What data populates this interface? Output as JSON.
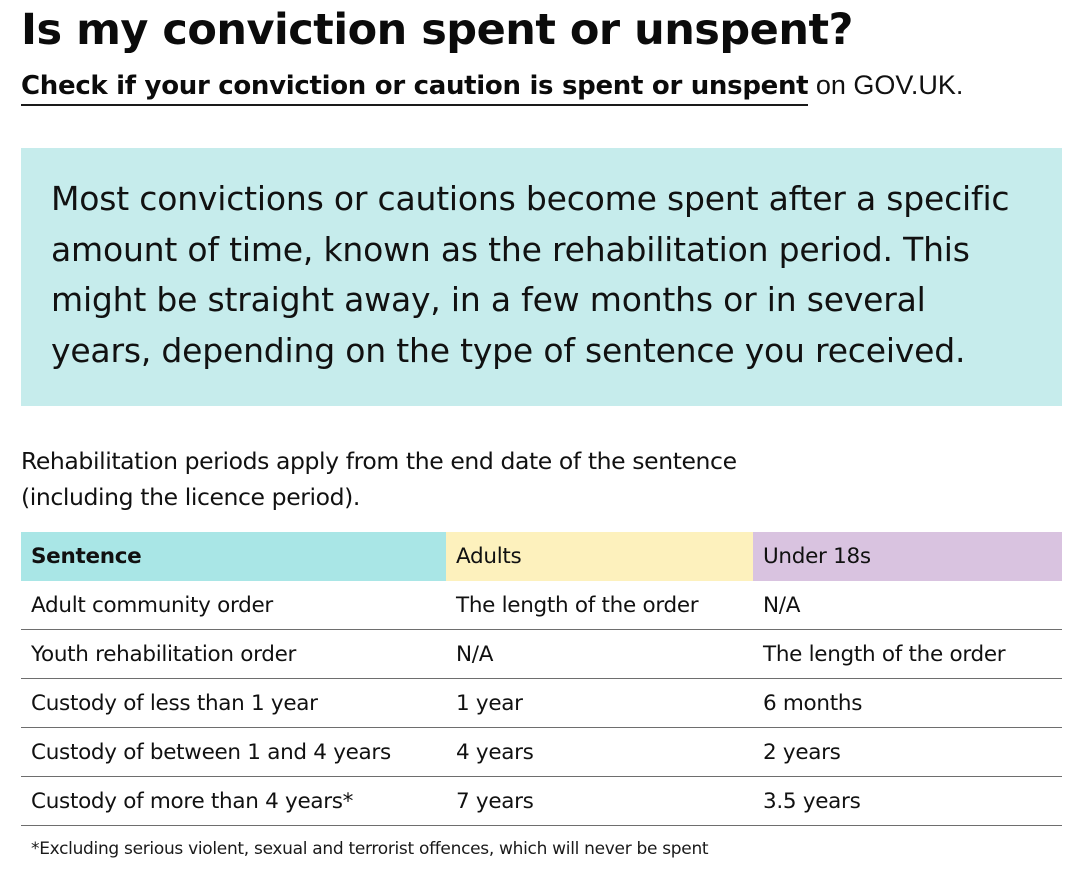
{
  "header": {
    "title": "Is my conviction spent or unspent?",
    "link_text": "Check if your conviction or caution is spent or unspent",
    "link_suffix": " on GOV.UK."
  },
  "callout": {
    "text": "Most convictions or cautions become spent after a specific amount of time, known as the rehabilitation period. This might be straight away, in a few months or in several years, depending on the type of sentence you received."
  },
  "intro": {
    "line1": "Rehabilitation periods apply from the end date of the sentence",
    "line2": "(including the licence period)."
  },
  "table": {
    "headers": [
      "Sentence",
      "Adults",
      "Under 18s"
    ],
    "rows": [
      [
        "Adult community order",
        "The length of the order",
        "N/A"
      ],
      [
        "Youth rehabilitation order",
        "N/A",
        "The length of the order"
      ],
      [
        "Custody of less than 1 year",
        "1 year",
        "6 months"
      ],
      [
        "Custody of between 1 and 4 years",
        "4 years",
        "2 years"
      ],
      [
        "Custody of more than 4 years*",
        "7 years",
        "3.5 years"
      ]
    ]
  },
  "footnote": "*Excluding serious violent, sexual and terrorist offences, which will never be spent",
  "colors": {
    "callout_bg": "#c6ecec",
    "sentence_header_bg": "#a9e6e6",
    "adults_header_bg": "#fdf1bd",
    "under18_header_bg": "#d9c3e0"
  }
}
